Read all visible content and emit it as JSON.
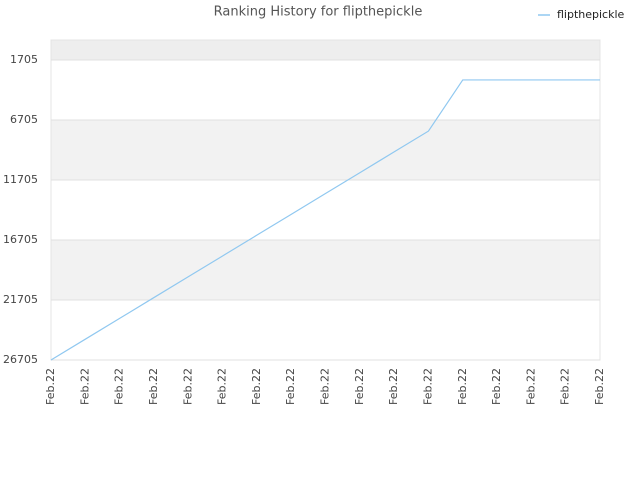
{
  "chart_data": {
    "type": "line",
    "title": "Ranking History for flipthepickle",
    "categories": [
      "Feb.22",
      "Feb.22",
      "Feb.22",
      "Feb.22",
      "Feb.22",
      "Feb.22",
      "Feb.22",
      "Feb.22",
      "Feb.22",
      "Feb.22",
      "Feb.22",
      "Feb.22",
      "Feb.22",
      "Feb.22",
      "Feb.22",
      "Feb.22",
      "Feb.22"
    ],
    "series": [
      {
        "name": "flipthepickle",
        "color": "#90c8f0",
        "values": [
          26705,
          24971,
          23237,
          21503,
          19769,
          18035,
          16301,
          14567,
          12833,
          11099,
          9365,
          7631,
          3370,
          3370,
          3370,
          3370,
          3370
        ]
      }
    ],
    "ylim": [
      26705,
      40
    ],
    "yticks": [
      1705,
      6705,
      11705,
      16705,
      21705,
      26705
    ],
    "grid": true,
    "legend": "top-right"
  }
}
